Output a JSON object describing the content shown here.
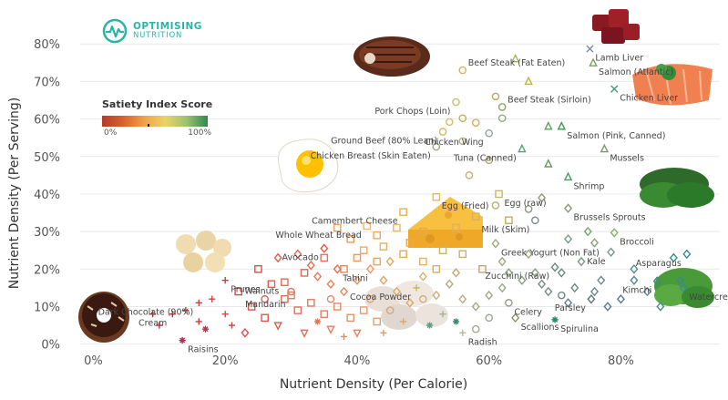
{
  "brand": {
    "line1": "OPTIMISING",
    "line2": "NUTRITION",
    "accent": "#2bb3a6"
  },
  "legend": {
    "title": "Satiety Index Score",
    "min_label": "0%",
    "max_label": "100%"
  },
  "chart_data": {
    "type": "scatter",
    "title": "",
    "xlabel": "Nutrient Density (Per Calorie)",
    "ylabel": "Nutrient Density (Per Serving)",
    "xlim": [
      -0.02,
      0.95
    ],
    "ylim": [
      -0.03,
      0.82
    ],
    "xticks": [
      "0%",
      "20%",
      "40%",
      "60%",
      "80%"
    ],
    "xtick_values": [
      0,
      0.2,
      0.4,
      0.6,
      0.8
    ],
    "yticks": [
      "0%",
      "10%",
      "20%",
      "30%",
      "40%",
      "50%",
      "60%",
      "70%",
      "80%"
    ],
    "ytick_values": [
      0,
      0.1,
      0.2,
      0.3,
      0.4,
      0.5,
      0.6,
      0.7,
      0.8
    ],
    "grid": "horizontal",
    "color_scale": "satiety index score",
    "labeled_points": [
      {
        "label": "Lamb Liver",
        "x": 0.753,
        "y": 0.787,
        "shape": "x",
        "color": "#7a8a9a"
      },
      {
        "label": "Salmon (Atlantic)",
        "x": 0.758,
        "y": 0.749,
        "shape": "triangle",
        "color": "#7aa060"
      },
      {
        "label": "Chicken Liver",
        "x": 0.79,
        "y": 0.68,
        "shape": "x",
        "color": "#3d9a7a"
      },
      {
        "label": "Beef Steak (Fat Eaten)",
        "x": 0.56,
        "y": 0.73,
        "shape": "circle",
        "color": "#c9b860"
      },
      {
        "label": "Beef Steak (Sirloin)",
        "x": 0.62,
        "y": 0.632,
        "shape": "circle",
        "color": "#8aa468"
      },
      {
        "label": "Pork Chops (Loin)",
        "x": 0.55,
        "y": 0.645,
        "shape": "circle",
        "color": "#c8c070"
      },
      {
        "label": "Ground Beef (80% Lean)",
        "x": 0.53,
        "y": 0.566,
        "shape": "circle",
        "color": "#d8b860"
      },
      {
        "label": "Chicken Wing",
        "x": 0.6,
        "y": 0.562,
        "shape": "circle",
        "color": "#8fa8a0"
      },
      {
        "label": "Chicken Breast (Skin Eaten)",
        "x": 0.52,
        "y": 0.526,
        "shape": "circle",
        "color": "#99aa88"
      },
      {
        "label": "Tuna (Canned)",
        "x": 0.65,
        "y": 0.52,
        "shape": "triangle",
        "color": "#5aa070"
      },
      {
        "label": "Salmon (Pink, Canned)",
        "x": 0.71,
        "y": 0.58,
        "shape": "triangle",
        "color": "#3a9a50"
      },
      {
        "label": "Mussels",
        "x": 0.775,
        "y": 0.52,
        "shape": "triangle",
        "color": "#7a9a6a"
      },
      {
        "label": "Shrimp",
        "x": 0.72,
        "y": 0.445,
        "shape": "triangle",
        "color": "#4a9a6a"
      },
      {
        "label": "Egg (Fried)",
        "x": 0.52,
        "y": 0.392,
        "shape": "square",
        "color": "#e8b860"
      },
      {
        "label": "Egg (raw)",
        "x": 0.615,
        "y": 0.4,
        "shape": "square",
        "color": "#c8b860"
      },
      {
        "label": "Brussels Sprouts",
        "x": 0.72,
        "y": 0.362,
        "shape": "diamond",
        "color": "#8a9a7a"
      },
      {
        "label": "Milk (Skim)",
        "x": 0.67,
        "y": 0.33,
        "shape": "circle",
        "color": "#7a8a8a"
      },
      {
        "label": "Camembert Cheese",
        "x": 0.47,
        "y": 0.352,
        "shape": "square",
        "color": "#e8b050"
      },
      {
        "label": "Whole Wheat Bread",
        "x": 0.415,
        "y": 0.315,
        "shape": "square",
        "color": "#f0b860"
      },
      {
        "label": "Broccoli",
        "x": 0.79,
        "y": 0.297,
        "shape": "diamond",
        "color": "#8ab060"
      },
      {
        "label": "Greek Yogurt (Non Fat)",
        "x": 0.61,
        "y": 0.268,
        "shape": "diamond",
        "color": "#a8a880"
      },
      {
        "label": "Avocado",
        "x": 0.35,
        "y": 0.255,
        "shape": "diamond",
        "color": "#e06040"
      },
      {
        "label": "Kale",
        "x": 0.785,
        "y": 0.245,
        "shape": "diamond",
        "color": "#7a9a8a"
      },
      {
        "label": "Zucchini (Raw)",
        "x": 0.7,
        "y": 0.205,
        "shape": "diamond",
        "color": "#6a8a7a"
      },
      {
        "label": "Tahini",
        "x": 0.37,
        "y": 0.2,
        "shape": "diamond",
        "color": "#e07050"
      },
      {
        "label": "Prunes",
        "x": 0.2,
        "y": 0.17,
        "shape": "plus",
        "color": "#c04050"
      },
      {
        "label": "Walnuts",
        "x": 0.29,
        "y": 0.165,
        "shape": "square",
        "color": "#e07060"
      },
      {
        "label": "Mandarin",
        "x": 0.3,
        "y": 0.13,
        "shape": "square",
        "color": "#e08060"
      },
      {
        "label": "Cocoa Powder",
        "x": 0.49,
        "y": 0.15,
        "shape": "plus",
        "color": "#c8b860"
      },
      {
        "label": "Asparagus",
        "x": 0.9,
        "y": 0.24,
        "shape": "diamond",
        "color": "#3a8a8a"
      },
      {
        "label": "Kimchi",
        "x": 0.855,
        "y": 0.168,
        "shape": "diamond",
        "color": "#3a8a8a"
      },
      {
        "label": "Parsley",
        "x": 0.755,
        "y": 0.12,
        "shape": "diamond",
        "color": "#5a7a7a"
      },
      {
        "label": "Watercress",
        "x": 0.895,
        "y": 0.15,
        "shape": "diamond",
        "color": "#3a8a9a"
      },
      {
        "label": "Dark Chocolate (90%)",
        "x": 0.16,
        "y": 0.11,
        "shape": "plus",
        "color": "#d04040"
      },
      {
        "label": "Cream",
        "x": 0.12,
        "y": 0.08,
        "shape": "plus",
        "color": "#c83030"
      },
      {
        "label": "Celery",
        "x": 0.63,
        "y": 0.11,
        "shape": "circle",
        "color": "#9a9a8a"
      },
      {
        "label": "Spirulina",
        "x": 0.7,
        "y": 0.065,
        "shape": "star",
        "color": "#2a8a6a"
      },
      {
        "label": "Scallions",
        "x": 0.64,
        "y": 0.07,
        "shape": "diamond",
        "color": "#8a9a6a"
      },
      {
        "label": "Radish",
        "x": 0.56,
        "y": 0.03,
        "shape": "plus",
        "color": "#b8b890"
      },
      {
        "label": "Raisins",
        "x": 0.135,
        "y": 0.01,
        "shape": "star",
        "color": "#b03050"
      }
    ],
    "unlabeled_points": [
      [
        0.64,
        0.76,
        "triangle",
        "#a8b060"
      ],
      [
        0.61,
        0.66,
        "circle",
        "#b8a860"
      ],
      [
        0.66,
        0.7,
        "triangle",
        "#c0b050"
      ],
      [
        0.62,
        0.602,
        "circle",
        "#98a878"
      ],
      [
        0.56,
        0.602,
        "circle",
        "#c0b060"
      ],
      [
        0.58,
        0.59,
        "circle",
        "#d0b060"
      ],
      [
        0.54,
        0.592,
        "circle",
        "#d0c070"
      ],
      [
        0.69,
        0.58,
        "triangle",
        "#60a060"
      ],
      [
        0.56,
        0.541,
        "circle",
        "#b8b080"
      ],
      [
        0.69,
        0.48,
        "triangle",
        "#6a9a60"
      ],
      [
        0.6,
        0.49,
        "circle",
        "#b0a870"
      ],
      [
        0.57,
        0.45,
        "circle",
        "#c8b070"
      ],
      [
        0.68,
        0.39,
        "diamond",
        "#9a9a80"
      ],
      [
        0.66,
        0.36,
        "circle",
        "#8a9a8a"
      ],
      [
        0.61,
        0.37,
        "circle",
        "#b8b070"
      ],
      [
        0.63,
        0.33,
        "square",
        "#c8a860"
      ],
      [
        0.58,
        0.34,
        "square",
        "#d8b060"
      ],
      [
        0.55,
        0.31,
        "square",
        "#e0b060"
      ],
      [
        0.5,
        0.3,
        "square",
        "#e8a850"
      ],
      [
        0.46,
        0.31,
        "square",
        "#f0b060"
      ],
      [
        0.43,
        0.29,
        "square",
        "#f0a860"
      ],
      [
        0.39,
        0.28,
        "square",
        "#f09850"
      ],
      [
        0.37,
        0.31,
        "square",
        "#f0a060"
      ],
      [
        0.41,
        0.25,
        "square",
        "#f0a860"
      ],
      [
        0.44,
        0.26,
        "square",
        "#e8b060"
      ],
      [
        0.47,
        0.24,
        "square",
        "#e8a858"
      ],
      [
        0.5,
        0.22,
        "square",
        "#e8b060"
      ],
      [
        0.53,
        0.25,
        "square",
        "#d8b060"
      ],
      [
        0.56,
        0.24,
        "square",
        "#c8b070"
      ],
      [
        0.59,
        0.2,
        "square",
        "#c0a870"
      ],
      [
        0.62,
        0.22,
        "diamond",
        "#a0a880"
      ],
      [
        0.66,
        0.24,
        "diamond",
        "#9aa880"
      ],
      [
        0.72,
        0.28,
        "diamond",
        "#7a9a80"
      ],
      [
        0.75,
        0.3,
        "diamond",
        "#7aa070"
      ],
      [
        0.76,
        0.27,
        "diamond",
        "#8aa070"
      ],
      [
        0.74,
        0.22,
        "diamond",
        "#7a9a7a"
      ],
      [
        0.71,
        0.19,
        "diamond",
        "#6a8a80"
      ],
      [
        0.67,
        0.19,
        "diamond",
        "#8a9a80"
      ],
      [
        0.68,
        0.16,
        "diamond",
        "#7a8a80"
      ],
      [
        0.73,
        0.15,
        "diamond",
        "#6a8a80"
      ],
      [
        0.77,
        0.17,
        "diamond",
        "#6a8a8a"
      ],
      [
        0.82,
        0.2,
        "diamond",
        "#5a8a8a"
      ],
      [
        0.84,
        0.14,
        "diamond",
        "#5a8a8a"
      ],
      [
        0.8,
        0.12,
        "diamond",
        "#5a7a8a"
      ],
      [
        0.72,
        0.11,
        "diamond",
        "#6a7a8a"
      ],
      [
        0.88,
        0.23,
        "diamond",
        "#3a8a8a"
      ],
      [
        0.89,
        0.17,
        "diamond",
        "#3a8a8a"
      ],
      [
        0.86,
        0.1,
        "diamond",
        "#4a8a8a"
      ],
      [
        0.28,
        0.23,
        "diamond",
        "#e06050"
      ],
      [
        0.31,
        0.24,
        "diamond",
        "#e06848"
      ],
      [
        0.33,
        0.21,
        "diamond",
        "#e07050"
      ],
      [
        0.34,
        0.18,
        "diamond",
        "#e07858"
      ],
      [
        0.36,
        0.16,
        "diamond",
        "#e88058"
      ],
      [
        0.38,
        0.14,
        "diamond",
        "#e88860"
      ],
      [
        0.4,
        0.17,
        "diamond",
        "#e89060"
      ],
      [
        0.42,
        0.2,
        "diamond",
        "#e89868"
      ],
      [
        0.44,
        0.17,
        "diamond",
        "#e8a060"
      ],
      [
        0.46,
        0.14,
        "diamond",
        "#e0a868"
      ],
      [
        0.48,
        0.11,
        "diamond",
        "#d8a868"
      ],
      [
        0.5,
        0.18,
        "diamond",
        "#d8b070"
      ],
      [
        0.52,
        0.13,
        "diamond",
        "#c8b070"
      ],
      [
        0.54,
        0.16,
        "diamond",
        "#b8a878"
      ],
      [
        0.56,
        0.12,
        "diamond",
        "#b8b080"
      ],
      [
        0.58,
        0.1,
        "diamond",
        "#a8a880"
      ],
      [
        0.6,
        0.13,
        "diamond",
        "#a0a888"
      ],
      [
        0.62,
        0.15,
        "diamond",
        "#98a888"
      ],
      [
        0.25,
        0.2,
        "square",
        "#d85048"
      ],
      [
        0.27,
        0.16,
        "square",
        "#e06050"
      ],
      [
        0.29,
        0.12,
        "square",
        "#e06858"
      ],
      [
        0.31,
        0.09,
        "square",
        "#e07058"
      ],
      [
        0.33,
        0.11,
        "square",
        "#e87860"
      ],
      [
        0.35,
        0.08,
        "square",
        "#e88060"
      ],
      [
        0.37,
        0.1,
        "square",
        "#e88860"
      ],
      [
        0.39,
        0.07,
        "square",
        "#e89068"
      ],
      [
        0.41,
        0.09,
        "square",
        "#e89870"
      ],
      [
        0.43,
        0.06,
        "square",
        "#e0a070"
      ],
      [
        0.22,
        0.14,
        "square",
        "#d84848"
      ],
      [
        0.24,
        0.1,
        "square",
        "#d85050"
      ],
      [
        0.26,
        0.07,
        "square",
        "#d85850"
      ],
      [
        0.18,
        0.12,
        "plus",
        "#d04040"
      ],
      [
        0.2,
        0.08,
        "plus",
        "#d04848"
      ],
      [
        0.16,
        0.06,
        "plus",
        "#c83840"
      ],
      [
        0.14,
        0.09,
        "plus",
        "#c83838"
      ],
      [
        0.1,
        0.05,
        "plus",
        "#c03030"
      ],
      [
        0.09,
        0.08,
        "plus",
        "#c03030"
      ],
      [
        0.17,
        0.04,
        "star",
        "#b83848"
      ],
      [
        0.21,
        0.05,
        "plus",
        "#c84048"
      ],
      [
        0.23,
        0.03,
        "diamond",
        "#d05050"
      ],
      [
        0.28,
        0.05,
        "triangle-down",
        "#d86050"
      ],
      [
        0.32,
        0.03,
        "triangle-down",
        "#e07058"
      ],
      [
        0.36,
        0.04,
        "triangle-down",
        "#e08060"
      ],
      [
        0.4,
        0.03,
        "triangle-down",
        "#e08860"
      ],
      [
        0.34,
        0.06,
        "star",
        "#e07858"
      ],
      [
        0.38,
        0.02,
        "plus",
        "#e08860"
      ],
      [
        0.44,
        0.03,
        "plus",
        "#d8a070"
      ],
      [
        0.47,
        0.06,
        "plus",
        "#d0a870"
      ],
      [
        0.51,
        0.05,
        "star",
        "#60a080"
      ],
      [
        0.53,
        0.08,
        "plus",
        "#a8b090"
      ],
      [
        0.55,
        0.06,
        "star",
        "#3a8a6a"
      ],
      [
        0.58,
        0.04,
        "circle",
        "#a8a890"
      ],
      [
        0.6,
        0.07,
        "circle",
        "#a0a890"
      ],
      [
        0.5,
        0.12,
        "circle",
        "#c8b080"
      ],
      [
        0.45,
        0.09,
        "circle",
        "#d8a878"
      ],
      [
        0.42,
        0.12,
        "circle",
        "#e0a070"
      ],
      [
        0.36,
        0.12,
        "circle",
        "#e88868"
      ],
      [
        0.3,
        0.14,
        "circle",
        "#e07060"
      ],
      [
        0.26,
        0.12,
        "circle",
        "#d86058"
      ],
      [
        0.45,
        0.22,
        "diamond",
        "#e0a868"
      ],
      [
        0.48,
        0.27,
        "square",
        "#e8a858"
      ],
      [
        0.35,
        0.23,
        "square",
        "#e87060"
      ],
      [
        0.32,
        0.19,
        "square",
        "#e06858"
      ],
      [
        0.38,
        0.2,
        "square",
        "#e88858"
      ],
      [
        0.4,
        0.23,
        "square",
        "#f09858"
      ],
      [
        0.43,
        0.22,
        "square",
        "#f0a060"
      ],
      [
        0.52,
        0.2,
        "square",
        "#d8b060"
      ],
      [
        0.55,
        0.19,
        "diamond",
        "#c0a878"
      ],
      [
        0.65,
        0.17,
        "diamond",
        "#8a9a80"
      ],
      [
        0.63,
        0.19,
        "diamond",
        "#90a080"
      ],
      [
        0.69,
        0.14,
        "diamond",
        "#7a8a80"
      ],
      [
        0.71,
        0.13,
        "circle",
        "#6a8a80"
      ],
      [
        0.76,
        0.14,
        "diamond",
        "#6a8a8a"
      ],
      [
        0.78,
        0.1,
        "diamond",
        "#5a7a8a"
      ],
      [
        0.82,
        0.17,
        "diamond",
        "#4a8a8a"
      ]
    ],
    "images": [
      "beef-steak-image",
      "liver-image",
      "salmon-image",
      "egg-image",
      "spinach-image",
      "cheese-image",
      "macadamia-image",
      "mushroom-image",
      "donut-image",
      "watercress-image"
    ]
  }
}
